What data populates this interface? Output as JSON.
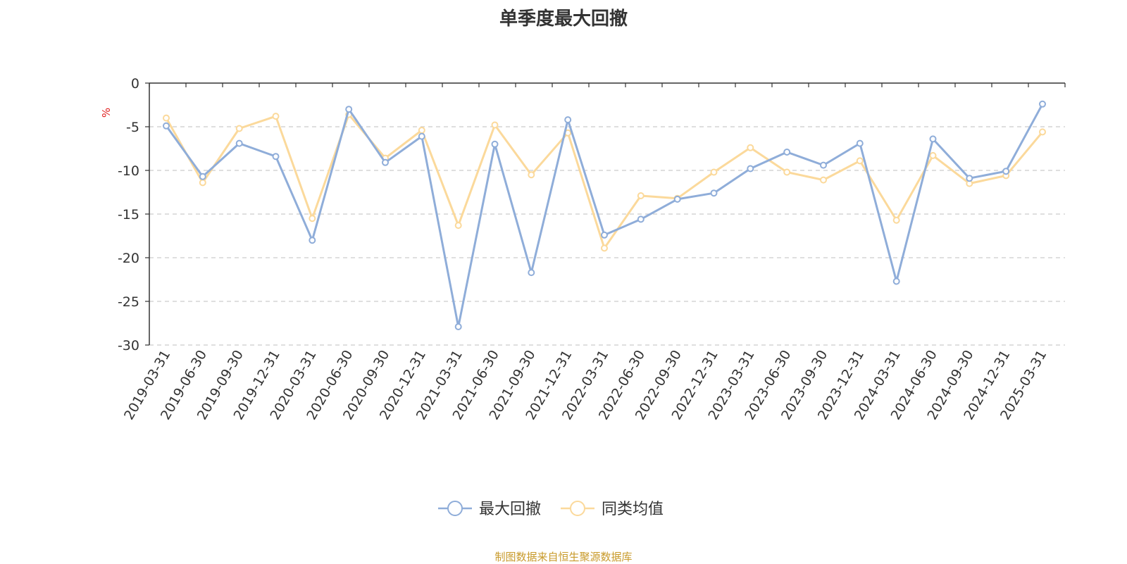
{
  "title": "单季度最大回撤",
  "footer": "制图数据来自恒生聚源数据库",
  "chart_data": {
    "type": "line",
    "title": "单季度最大回撤",
    "ylabel": "%",
    "xlabel": "",
    "ylim": [
      -30,
      0
    ],
    "yticks": [
      0,
      -5,
      -10,
      -15,
      -20,
      -25,
      -30
    ],
    "grid": true,
    "legend_position": "bottom-center",
    "categories": [
      "2019-03-31",
      "2019-06-30",
      "2019-09-30",
      "2019-12-31",
      "2020-03-31",
      "2020-06-30",
      "2020-09-30",
      "2020-12-31",
      "2021-03-31",
      "2021-06-30",
      "2021-09-30",
      "2021-12-31",
      "2022-03-31",
      "2022-06-30",
      "2022-09-30",
      "2022-12-31",
      "2023-03-31",
      "2023-06-30",
      "2023-09-30",
      "2023-12-31",
      "2024-03-31",
      "2024-06-30",
      "2024-09-30",
      "2024-12-31",
      "2025-03-31"
    ],
    "series": [
      {
        "name": "最大回撤",
        "color": "#8fadd9",
        "values": [
          -4.9,
          -10.7,
          -6.9,
          -8.4,
          -18.0,
          -3.0,
          -9.1,
          -6.1,
          -27.9,
          -7.0,
          -21.7,
          -4.2,
          -17.4,
          -15.6,
          -13.3,
          -12.6,
          -9.8,
          -7.9,
          -9.4,
          -6.9,
          -22.7,
          -6.4,
          -10.9,
          -10.1,
          -2.4
        ]
      },
      {
        "name": "同类均值",
        "color": "#fbd99b",
        "values": [
          -4.0,
          -11.4,
          -5.2,
          -3.8,
          -15.5,
          -3.6,
          -8.6,
          -5.4,
          -16.3,
          -4.8,
          -10.5,
          -5.7,
          -18.9,
          -12.9,
          -13.2,
          -10.2,
          -7.4,
          -10.2,
          -11.1,
          -8.9,
          -15.7,
          -8.3,
          -11.5,
          -10.6,
          -5.6
        ]
      }
    ]
  }
}
